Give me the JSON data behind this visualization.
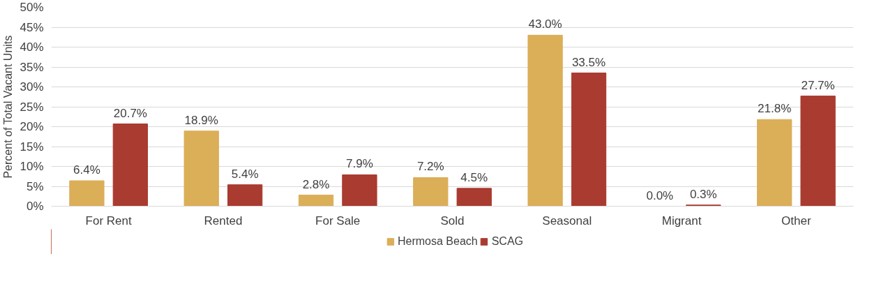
{
  "chart_data": {
    "type": "bar",
    "ylabel": "Percent of Total Vacant Units",
    "categories": [
      "For Rent",
      "Rented",
      "For Sale",
      "Sold",
      "Seasonal",
      "Migrant",
      "Other"
    ],
    "series": [
      {
        "name": "Hermosa Beach",
        "color": "#dbae58",
        "values": [
          6.4,
          18.9,
          2.8,
          7.2,
          43.0,
          0.0,
          21.8
        ],
        "value_labels": [
          "6.4%",
          "18.9%",
          "2.8%",
          "7.2%",
          "43.0%",
          "0.0%",
          "21.8%"
        ]
      },
      {
        "name": "SCAG",
        "color": "#a93b30",
        "values": [
          20.7,
          5.4,
          7.9,
          4.5,
          33.5,
          0.3,
          27.7
        ],
        "value_labels": [
          "20.7%",
          "5.4%",
          "7.9%",
          "4.5%",
          "33.5%",
          "0.3%",
          "27.7%"
        ]
      }
    ],
    "ylim": [
      0,
      50
    ],
    "yticks": [
      {
        "value": 0,
        "label": "0%"
      },
      {
        "value": 5,
        "label": "5%"
      },
      {
        "value": 10,
        "label": "10%"
      },
      {
        "value": 15,
        "label": "15%"
      },
      {
        "value": 20,
        "label": "20%"
      },
      {
        "value": 25,
        "label": "25%"
      },
      {
        "value": 30,
        "label": "30%"
      },
      {
        "value": 35,
        "label": "35%"
      },
      {
        "value": 40,
        "label": "40%"
      },
      {
        "value": 45,
        "label": "45%"
      },
      {
        "value": 50,
        "label": "50%"
      }
    ],
    "grid": "y",
    "legend": "bottom"
  }
}
